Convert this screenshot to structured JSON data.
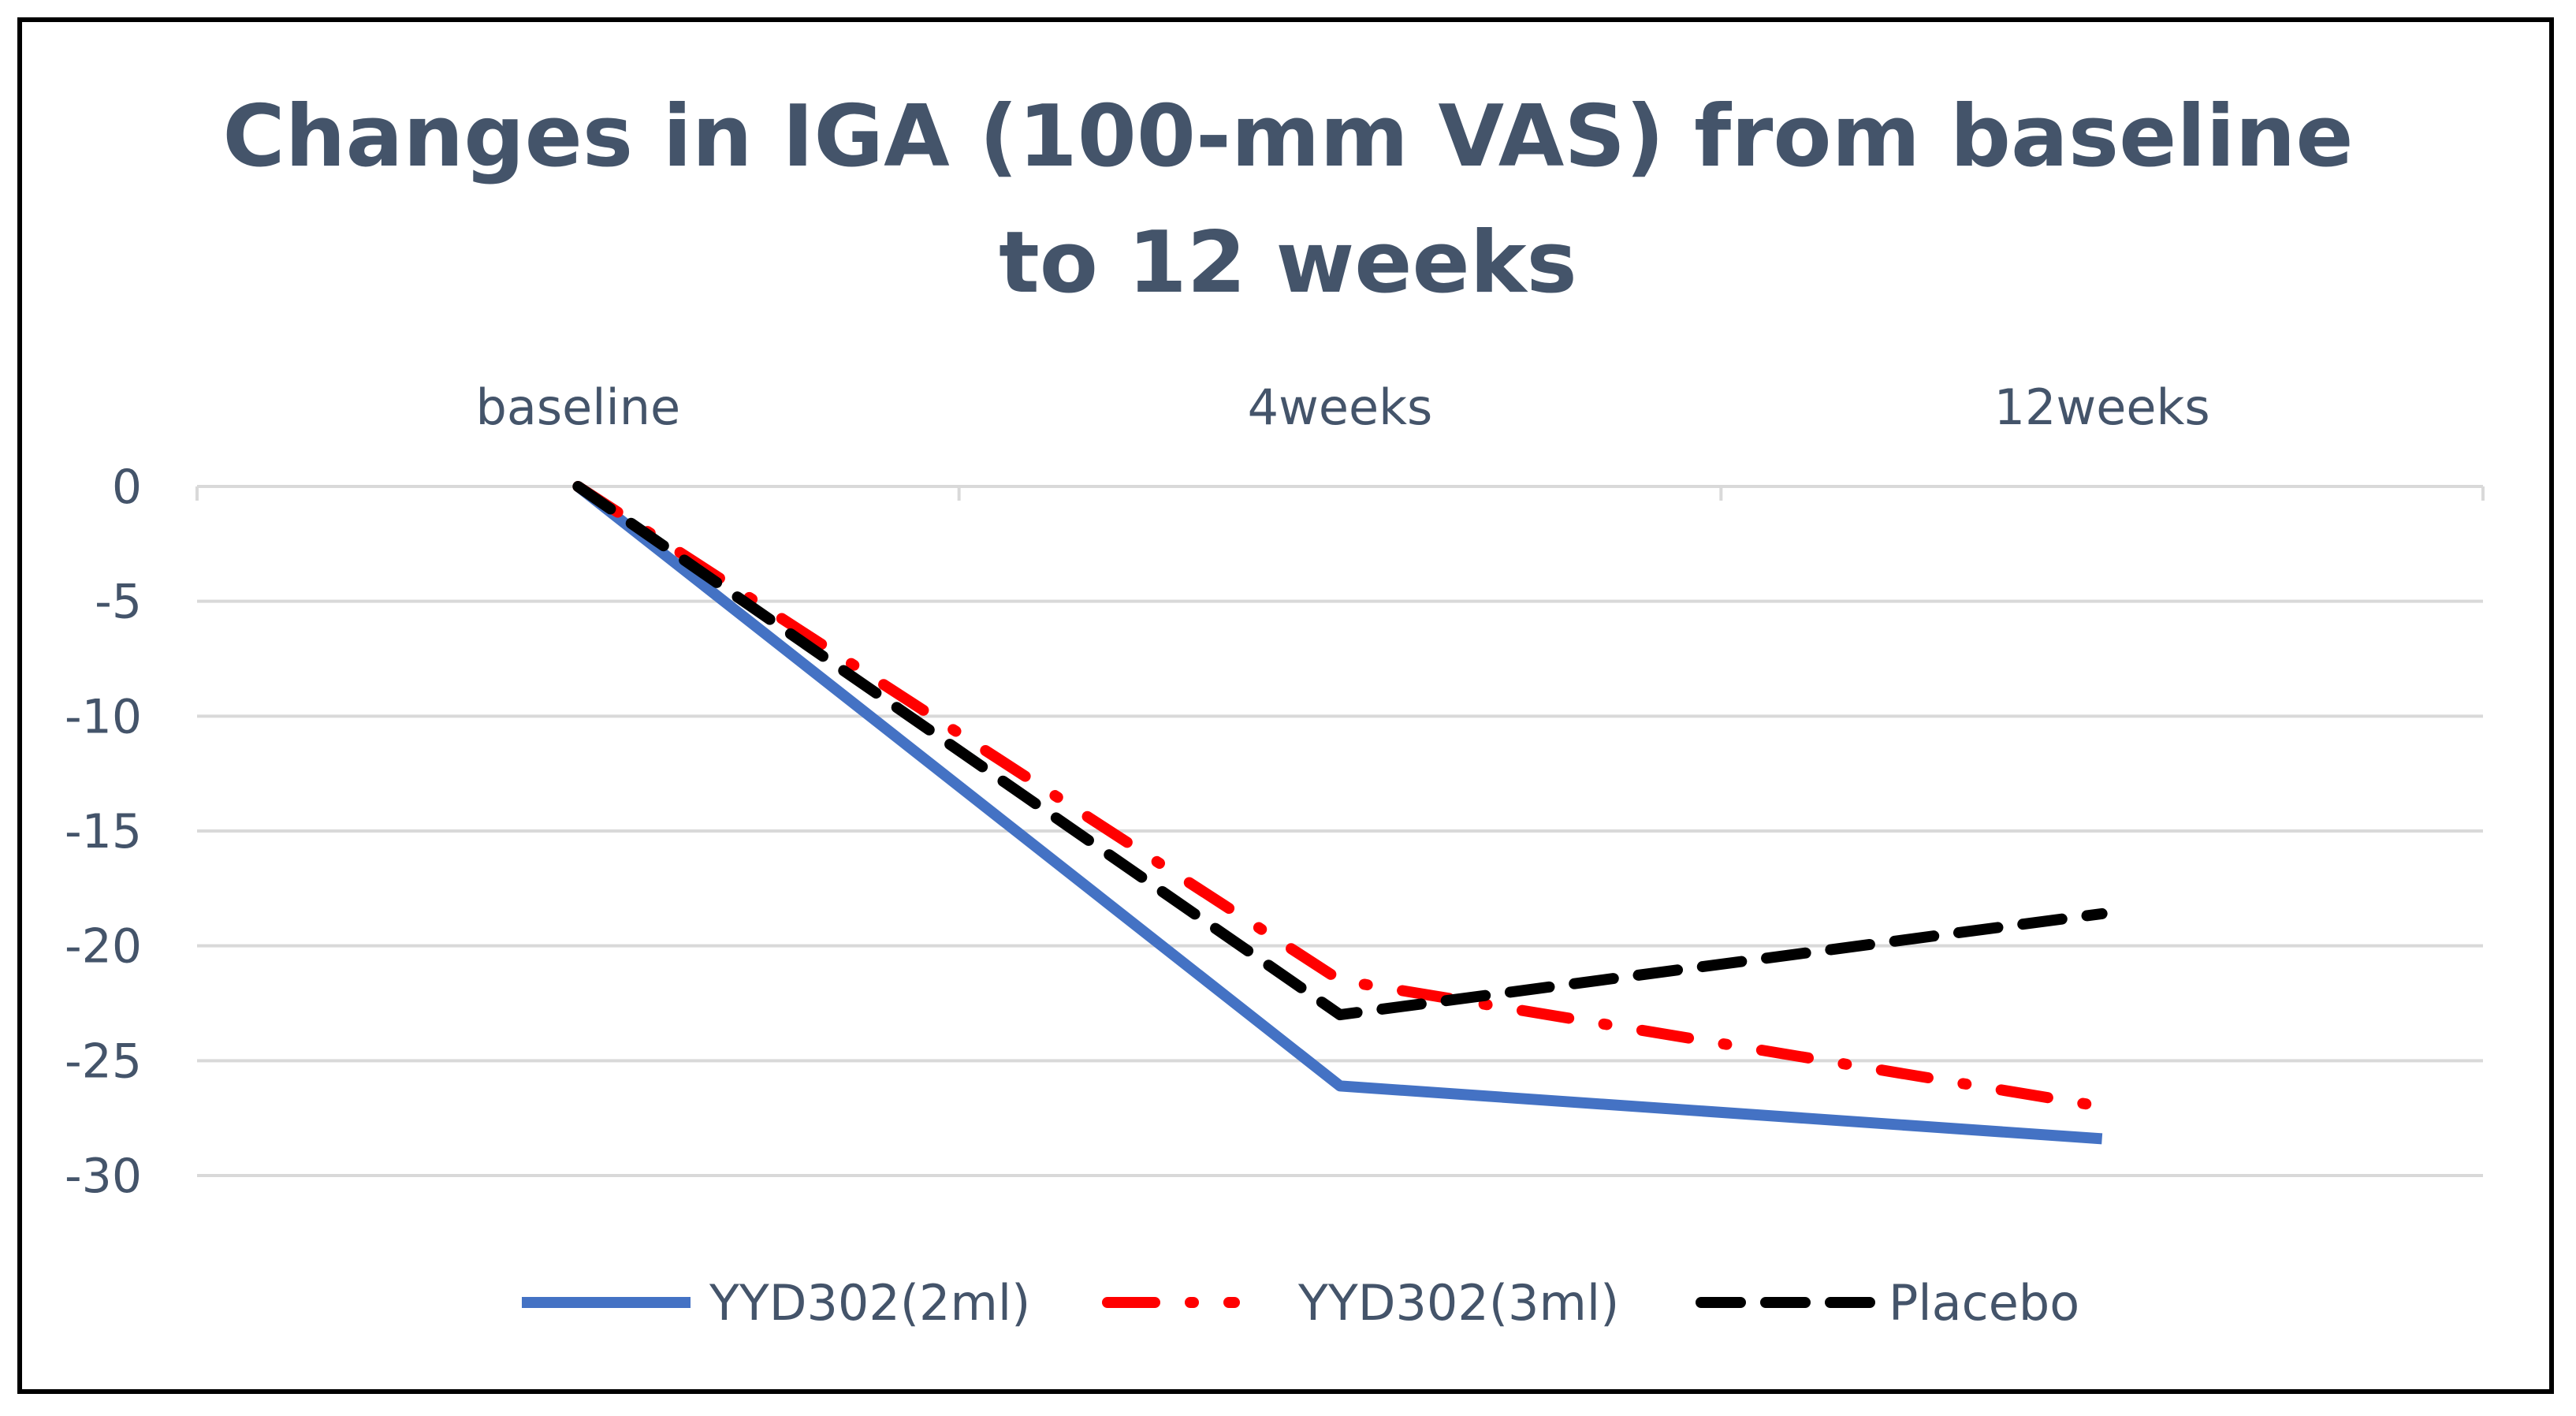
{
  "chart_data": {
    "type": "line",
    "title_lines": [
      "Changes in IGA (100-mm VAS) from baseline",
      "to 12 weeks"
    ],
    "categories": [
      "baseline",
      "4weeks",
      "12weeks"
    ],
    "category_axis_position": "top",
    "ylim": [
      -30,
      0
    ],
    "yticks": [
      0,
      -5,
      -10,
      -15,
      -20,
      -25,
      -30
    ],
    "grid": true,
    "legend_position": "bottom",
    "series": [
      {
        "name": "YYD302(2ml)",
        "values": [
          0,
          -26.1,
          -28.4
        ],
        "color": "#4472c4",
        "style": "solid"
      },
      {
        "name": "YYD302(3ml)",
        "values": [
          0,
          -21.5,
          -27.0
        ],
        "color": "#ff0000",
        "style": "dash-dot"
      },
      {
        "name": "Placebo",
        "values": [
          0,
          -23.0,
          -18.6
        ],
        "color": "#000000",
        "style": "dash"
      }
    ]
  }
}
